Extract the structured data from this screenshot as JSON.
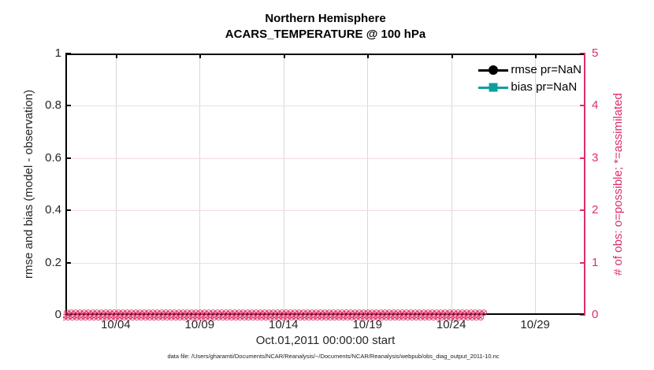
{
  "title": {
    "line1": "Northern Hemisphere",
    "line2": "ACARS_TEMPERATURE @ 100 hPa"
  },
  "axes": {
    "left": {
      "label": "rmse and bias (model - observation)",
      "ticks": [
        "1",
        "0.8",
        "0.6",
        "0.4",
        "0.2",
        "0"
      ],
      "range": [
        0,
        1
      ]
    },
    "right": {
      "label": "# of obs: o=possible; *=assimilated",
      "ticks": [
        "5",
        "4",
        "3",
        "2",
        "1",
        "0"
      ],
      "range": [
        0,
        5
      ]
    },
    "x": {
      "ticks": [
        "10/04",
        "10/09",
        "10/14",
        "10/19",
        "10/24",
        "10/29"
      ],
      "label": "Oct.01,2011 00:00:00 start"
    }
  },
  "legend": {
    "items": [
      {
        "label": "rmse pr=NaN",
        "color": "#000000",
        "marker": "circle"
      },
      {
        "label": "bias pr=NaN",
        "color": "#0f9e9e",
        "marker": "square"
      }
    ]
  },
  "footer": {
    "text": "data file: /Users/gharamti/Documents/NCAR/Reanalysis/~/Documents/NCAR/Reanalysis/webpub/obs_diag_output_2011-10.nc"
  },
  "colors": {
    "left_axis": "#000000",
    "right_axis": "#dd2e66",
    "grid_vertical": "#d9d9d9",
    "grid_horizontal": "#f6d9e4",
    "rmse": "#000000",
    "bias": "#0f9e9e",
    "obs_markers": "#dd2e66"
  },
  "chart_data": {
    "type": "line",
    "title": "Northern Hemisphere",
    "subtitle": "ACARS_TEMPERATURE @ 100 hPa",
    "xlabel": "Oct.01,2011 00:00:00 start",
    "x_tick_labels": [
      "10/04",
      "10/09",
      "10/14",
      "10/19",
      "10/24",
      "10/29"
    ],
    "x_tick_day_offsets": [
      3,
      8,
      13,
      18,
      23,
      28
    ],
    "x_axis_span_days": 31,
    "left_axis": {
      "label": "rmse and bias (model - observation)",
      "range": [
        0,
        1
      ],
      "tick_step": 0.2
    },
    "right_axis": {
      "label": "# of obs: o=possible; *=assimilated",
      "range": [
        0,
        5
      ],
      "tick_step": 1
    },
    "grid": true,
    "legend_position": "upper right, no box",
    "series": [
      {
        "name": "rmse pr=NaN",
        "axis": "left",
        "color": "#000000",
        "marker": "filled-circle",
        "values": "NaN (no curve drawn)"
      },
      {
        "name": "bias pr=NaN",
        "axis": "left",
        "color": "#0f9e9e",
        "marker": "filled-square",
        "values": "NaN (no curve drawn)"
      },
      {
        "name": "# of obs possible (o)",
        "axis": "right",
        "color": "#dd2e66",
        "marker": "o",
        "values": "0 at every time step Oct 1 - Oct 31, 2011"
      },
      {
        "name": "# of obs assimilated (*)",
        "axis": "right",
        "color": "#dd2e66",
        "marker": "x",
        "values": "0 at every time step Oct 1 - Oct 31, 2011"
      }
    ],
    "obs_band": {
      "symbol": "⊗",
      "y_value": 0,
      "color": "#dd2e66",
      "note": "dense overlapping o and x markers along y=0"
    }
  }
}
